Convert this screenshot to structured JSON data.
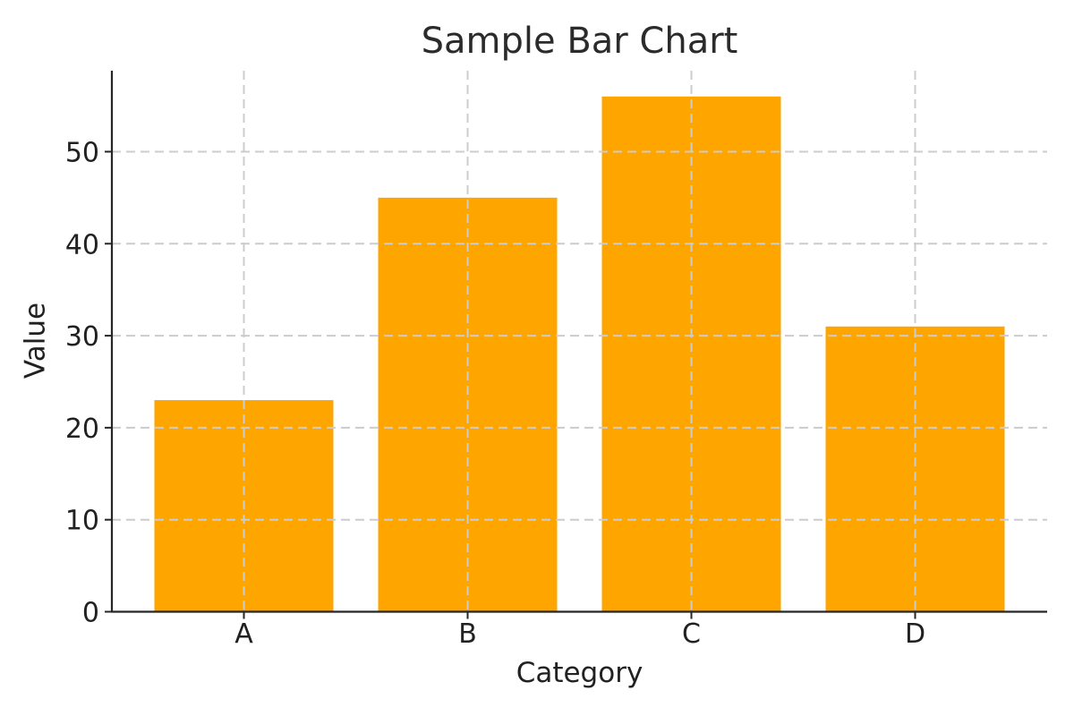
{
  "figure": {
    "background": "#ffffff"
  },
  "chart_data": {
    "type": "bar",
    "title": "Sample Bar Chart",
    "xlabel": "Category",
    "ylabel": "Value",
    "categories": [
      "A",
      "B",
      "C",
      "D"
    ],
    "values": [
      23,
      45,
      56,
      31
    ],
    "yticks": [
      0,
      10,
      20,
      30,
      40,
      50
    ],
    "ylim": [
      0,
      58.8
    ],
    "bar_color": "#FFA500",
    "grid": "on",
    "grid_style": "dashed",
    "grid_over_bars": true,
    "grid_color": "#cccccc",
    "axis_color": "#262626",
    "text_color": "#212121",
    "legend_position": "none"
  }
}
